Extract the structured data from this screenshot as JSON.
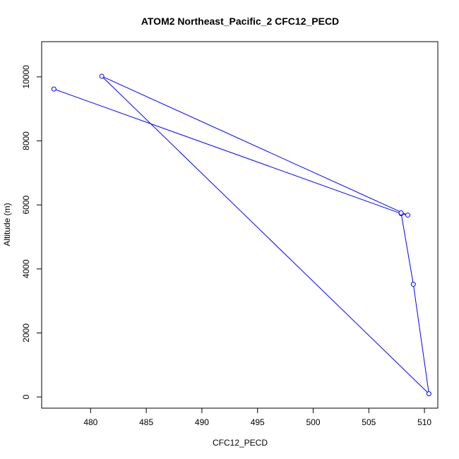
{
  "chart_data": {
    "type": "line",
    "title": "ATOM2 Northeast_Pacific_2 CFC12_PECD",
    "xlabel": "CFC12_PECD",
    "ylabel": "Altitude (m)",
    "xlim": [
      475.6,
      511.2
    ],
    "ylim": [
      -350,
      11100
    ],
    "xticks": [
      480,
      485,
      490,
      495,
      500,
      505,
      510
    ],
    "yticks": [
      0,
      2000,
      4000,
      6000,
      8000,
      10000
    ],
    "series": [
      {
        "color": "#0000ff",
        "marker": "open-circle",
        "points": [
          {
            "x": 476.7,
            "y": 9620
          },
          {
            "x": 507.9,
            "y": 5730
          },
          {
            "x": 508.5,
            "y": 5680
          },
          {
            "x": 481.0,
            "y": 10020
          },
          {
            "x": 510.4,
            "y": 100
          },
          {
            "x": 509.0,
            "y": 3520
          },
          {
            "x": 507.9,
            "y": 5750
          }
        ]
      }
    ]
  }
}
